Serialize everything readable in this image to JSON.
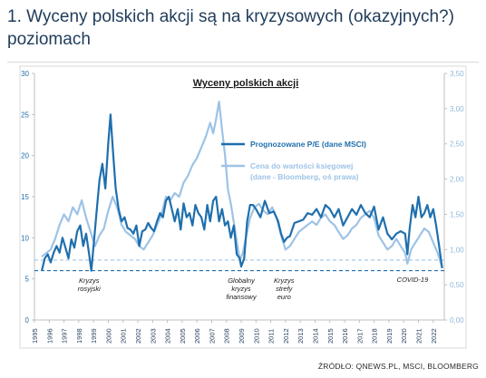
{
  "page": {
    "heading": "1. Wyceny polskich akcji są na kryzysowych (okazyjnych?) poziomach",
    "source": "ŹRÓDŁO: QNEWS.PL, MSCI, BLOOMBERG"
  },
  "chart_data": {
    "type": "line",
    "title": "Wyceny polskich akcji",
    "xlim": [
      1995,
      2022.75
    ],
    "x_ticks": [
      "1995",
      "1996",
      "1997",
      "1998",
      "1999",
      "2000",
      "2001",
      "2002",
      "2003",
      "2004",
      "2005",
      "2006",
      "2007",
      "2008",
      "2009",
      "2010",
      "2011",
      "2012",
      "2013",
      "2014",
      "2015",
      "2016",
      "2017",
      "2018",
      "2019",
      "2020",
      "2021",
      "2022"
    ],
    "y_left": {
      "lim": [
        0,
        30
      ],
      "ticks": [
        "0",
        "5",
        "10",
        "15",
        "20",
        "25",
        "30"
      ]
    },
    "y_right": {
      "lim": [
        0,
        3.5
      ],
      "ticks": [
        "0,00",
        "0,50",
        "1,00",
        "1,50",
        "2,00",
        "2,50",
        "3,00",
        "3,50"
      ]
    },
    "grid": false,
    "legend_position": "upper-right-inside",
    "colors": {
      "pe": "#1f6fad",
      "pbv": "#9dc3e6",
      "axis_left": "#1f6fad",
      "axis_right": "#8fb8de"
    },
    "series": [
      {
        "name": "Prognozowane P/E (dane MSCI)",
        "axis": "left",
        "x": [
          1995.5,
          1995.7,
          1995.9,
          1996.1,
          1996.3,
          1996.5,
          1996.7,
          1996.9,
          1997.1,
          1997.3,
          1997.5,
          1997.7,
          1997.9,
          1998.1,
          1998.3,
          1998.5,
          1998.7,
          1998.85,
          1999.0,
          1999.2,
          1999.4,
          1999.6,
          1999.8,
          2000.0,
          2000.15,
          2000.3,
          2000.5,
          2000.7,
          2000.9,
          2001.1,
          2001.3,
          2001.5,
          2001.7,
          2001.9,
          2002.1,
          2002.3,
          2002.5,
          2002.7,
          2002.9,
          2003.1,
          2003.3,
          2003.5,
          2003.7,
          2003.9,
          2004.1,
          2004.3,
          2004.5,
          2004.7,
          2004.9,
          2005.1,
          2005.3,
          2005.5,
          2005.7,
          2005.9,
          2006.1,
          2006.3,
          2006.5,
          2006.7,
          2006.9,
          2007.1,
          2007.3,
          2007.5,
          2007.7,
          2007.9,
          2008.1,
          2008.3,
          2008.5,
          2008.7,
          2008.9,
          2009.0,
          2009.2,
          2009.4,
          2009.6,
          2009.8,
          2010.0,
          2010.3,
          2010.6,
          2010.9,
          2011.2,
          2011.5,
          2011.7,
          2011.9,
          2012.1,
          2012.3,
          2012.6,
          2012.9,
          2013.2,
          2013.5,
          2013.8,
          2014.1,
          2014.4,
          2014.7,
          2015.0,
          2015.3,
          2015.6,
          2015.9,
          2016.2,
          2016.5,
          2016.8,
          2017.1,
          2017.4,
          2017.7,
          2018.0,
          2018.3,
          2018.6,
          2018.9,
          2019.2,
          2019.5,
          2019.8,
          2020.1,
          2020.25,
          2020.4,
          2020.6,
          2020.8,
          2021.0,
          2021.2,
          2021.4,
          2021.6,
          2021.8,
          2022.0,
          2022.2,
          2022.4,
          2022.6
        ],
        "y": [
          6.0,
          7.5,
          8.0,
          7.0,
          8.2,
          9.0,
          8.2,
          10.0,
          8.8,
          7.5,
          9.8,
          8.8,
          10.8,
          11.5,
          9.0,
          10.5,
          8.0,
          6.0,
          9.0,
          13.0,
          17.0,
          19.0,
          16.0,
          21.5,
          25.0,
          21.0,
          16.0,
          13.5,
          12.0,
          12.5,
          11.2,
          11.0,
          10.5,
          11.5,
          9.0,
          10.8,
          11.0,
          11.8,
          11.2,
          10.8,
          12.0,
          13.0,
          12.5,
          14.5,
          15.0,
          13.5,
          12.0,
          13.5,
          11.0,
          14.2,
          12.5,
          13.0,
          11.5,
          14.0,
          13.0,
          12.5,
          11.0,
          14.0,
          12.0,
          14.5,
          15.0,
          12.0,
          13.5,
          11.5,
          12.0,
          10.0,
          11.5,
          8.0,
          7.5,
          6.5,
          7.5,
          12.0,
          14.0,
          14.0,
          13.5,
          12.5,
          14.5,
          13.0,
          13.2,
          12.0,
          10.5,
          9.5,
          10.0,
          10.2,
          11.8,
          12.0,
          12.2,
          13.0,
          12.8,
          13.5,
          12.5,
          14.0,
          13.5,
          12.5,
          13.5,
          11.5,
          12.5,
          13.5,
          12.8,
          14.0,
          13.0,
          12.5,
          13.8,
          11.0,
          12.5,
          10.5,
          9.8,
          10.5,
          10.8,
          10.5,
          8.0,
          11.0,
          14.0,
          12.5,
          15.0,
          12.5,
          13.0,
          14.0,
          12.5,
          13.5,
          11.5,
          9.0,
          6.3
        ]
      },
      {
        "name": "Cena do wartości księgowej (dane - Bloomberg, oś prawa)",
        "axis": "right",
        "x": [
          1995.5,
          1995.8,
          1996.1,
          1996.4,
          1996.7,
          1997.0,
          1997.3,
          1997.6,
          1997.9,
          1998.2,
          1998.5,
          1998.8,
          1999.1,
          1999.4,
          1999.7,
          2000.0,
          2000.3,
          2000.6,
          2000.9,
          2001.2,
          2001.5,
          2001.8,
          2002.1,
          2002.4,
          2002.7,
          2003.0,
          2003.3,
          2003.6,
          2003.9,
          2004.2,
          2004.5,
          2004.8,
          2005.1,
          2005.4,
          2005.7,
          2006.0,
          2006.3,
          2006.6,
          2006.9,
          2007.1,
          2007.3,
          2007.5,
          2007.7,
          2007.9,
          2008.1,
          2008.3,
          2008.6,
          2008.9,
          2009.1,
          2009.3,
          2009.6,
          2009.9,
          2010.2,
          2010.5,
          2010.8,
          2011.1,
          2011.4,
          2011.7,
          2012.0,
          2012.3,
          2012.6,
          2012.9,
          2013.2,
          2013.5,
          2013.8,
          2014.1,
          2014.4,
          2014.7,
          2015.0,
          2015.3,
          2015.6,
          2015.9,
          2016.2,
          2016.5,
          2016.8,
          2017.1,
          2017.4,
          2017.7,
          2018.0,
          2018.3,
          2018.6,
          2018.9,
          2019.2,
          2019.5,
          2019.8,
          2020.1,
          2020.25,
          2020.5,
          2020.8,
          2021.1,
          2021.4,
          2021.7,
          2022.0,
          2022.3,
          2022.6
        ],
        "y": [
          0.9,
          0.95,
          1.0,
          1.15,
          1.35,
          1.5,
          1.4,
          1.6,
          1.5,
          1.7,
          1.45,
          1.25,
          1.05,
          1.2,
          1.3,
          1.55,
          1.75,
          1.6,
          1.35,
          1.25,
          1.2,
          1.15,
          1.05,
          1.0,
          1.1,
          1.2,
          1.35,
          1.5,
          1.75,
          1.7,
          1.8,
          1.75,
          1.95,
          2.05,
          2.2,
          2.3,
          2.45,
          2.6,
          2.8,
          2.65,
          2.85,
          3.1,
          2.7,
          2.35,
          1.85,
          1.65,
          1.25,
          0.85,
          0.95,
          1.15,
          1.45,
          1.6,
          1.65,
          1.55,
          1.5,
          1.6,
          1.45,
          1.2,
          1.0,
          1.05,
          1.15,
          1.25,
          1.3,
          1.35,
          1.4,
          1.35,
          1.45,
          1.5,
          1.4,
          1.35,
          1.25,
          1.15,
          1.2,
          1.3,
          1.35,
          1.45,
          1.5,
          1.55,
          1.45,
          1.2,
          1.1,
          1.0,
          1.05,
          1.15,
          1.05,
          0.95,
          0.8,
          1.0,
          1.1,
          1.2,
          1.3,
          1.25,
          1.1,
          0.95,
          0.75
        ]
      }
    ],
    "reference_lines": [
      {
        "axis": "left",
        "y": 6.0,
        "style": "dashed",
        "color": "#1f6fad"
      },
      {
        "axis": "right",
        "y": 0.85,
        "style": "dashed",
        "color": "#9dc3e6"
      }
    ],
    "legend": [
      {
        "label": "Prognozowane P/E (dane MSCI)",
        "series": 0
      },
      {
        "label_lines": [
          "Cena do wartości księgowej",
          "(dane - Bloomberg, oś prawa)"
        ],
        "series": 1
      }
    ],
    "annotations": [
      {
        "lines": [
          "Kryzys",
          "rosyjski"
        ],
        "x": 1998.7
      },
      {
        "lines": [
          "Globalny",
          "kryzys",
          "finansowy"
        ],
        "x": 2009.0
      },
      {
        "lines": [
          "Kryzys",
          "strefy",
          "euro"
        ],
        "x": 2011.9
      },
      {
        "lines": [
          "COVID-19"
        ],
        "x": 2020.6
      }
    ]
  }
}
